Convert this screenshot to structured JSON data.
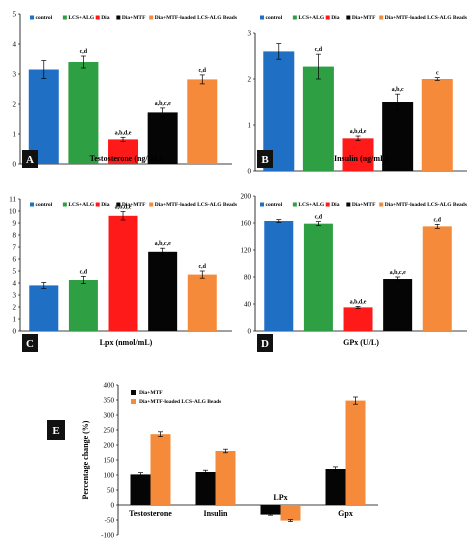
{
  "colors": {
    "control": "#1F6FC5",
    "lcs_alg": "#2EA043",
    "dia": "#FF1A1A",
    "dia_mtf": "#050505",
    "dia_mtf_beads": "#F58A3A",
    "axis": "#000000",
    "panel_letter_bg": "#111111"
  },
  "chart_data": [
    {
      "type": "bar",
      "panel_label": "A",
      "xlabel": "Testosterone (ng/mL)",
      "ylim": [
        0,
        5
      ],
      "yticks": [
        "0",
        "1",
        "2",
        "3",
        "4",
        "5"
      ],
      "series": [
        {
          "name": "control",
          "value": 3.15,
          "err": 0.3,
          "annot": ""
        },
        {
          "name": "LCS+ALG",
          "value": 3.4,
          "err": 0.2,
          "annot": "c,d"
        },
        {
          "name": "Dia",
          "value": 0.82,
          "err": 0.07,
          "annot": "a,b,d,e"
        },
        {
          "name": "Dia+MTF",
          "value": 1.72,
          "err": 0.15,
          "annot": "a,b,c,e"
        },
        {
          "name": "Dia+MTF-loaded LCS-ALG Beads",
          "value": 2.82,
          "err": 0.15,
          "annot": "c,d"
        }
      ]
    },
    {
      "type": "bar",
      "panel_label": "B",
      "xlabel": "Insulin (ng/mL)",
      "ylim": [
        0,
        3
      ],
      "yticks": [
        "0",
        "1",
        "2",
        "3"
      ],
      "series": [
        {
          "name": "control",
          "value": 2.6,
          "err": 0.17,
          "annot": ""
        },
        {
          "name": "LCS+ALG",
          "value": 2.27,
          "err": 0.27,
          "annot": "c,d"
        },
        {
          "name": "Dia",
          "value": 0.71,
          "err": 0.05,
          "annot": "a,b,d,e"
        },
        {
          "name": "Dia+MTF",
          "value": 1.5,
          "err": 0.17,
          "annot": "a,b,c"
        },
        {
          "name": "Dia+MTF-loaded LCS-ALG Beads",
          "value": 2.0,
          "err": 0.03,
          "annot": "c"
        }
      ]
    },
    {
      "type": "bar",
      "panel_label": "C",
      "xlabel": "Lpx (nmol/mL)",
      "ylim": [
        0,
        11
      ],
      "yticks": [
        "0",
        "1",
        "2",
        "3",
        "4",
        "5",
        "6",
        "7",
        "8",
        "9",
        "10",
        "11"
      ],
      "series": [
        {
          "name": "control",
          "value": 3.8,
          "err": 0.25,
          "annot": ""
        },
        {
          "name": "LCS+ALG",
          "value": 4.25,
          "err": 0.3,
          "annot": "c,d"
        },
        {
          "name": "Dia",
          "value": 9.6,
          "err": 0.35,
          "annot": "a,b,d,e"
        },
        {
          "name": "Dia+MTF",
          "value": 6.6,
          "err": 0.3,
          "annot": "a,b,c,e"
        },
        {
          "name": "Dia+MTF-loaded LCS-ALG Beads",
          "value": 4.7,
          "err": 0.3,
          "annot": "c,d"
        }
      ]
    },
    {
      "type": "bar",
      "panel_label": "D",
      "xlabel": "GPx (U/L)",
      "ylim": [
        0,
        200
      ],
      "yticks": [
        "0",
        "40",
        "80",
        "120",
        "160",
        "200"
      ],
      "series": [
        {
          "name": "control",
          "value": 163,
          "err": 2,
          "annot": ""
        },
        {
          "name": "LCS+ALG",
          "value": 159,
          "err": 3,
          "annot": "c,d"
        },
        {
          "name": "Dia",
          "value": 35,
          "err": 1.5,
          "annot": "a,b,d,e"
        },
        {
          "name": "Dia+MTF",
          "value": 77,
          "err": 3,
          "annot": "a,b,c,e"
        },
        {
          "name": "Dia+MTF-loaded LCS-ALG Beads",
          "value": 155,
          "err": 3,
          "annot": "c,d"
        }
      ]
    },
    {
      "type": "bar",
      "panel_label": "E",
      "ylabel": "Percentage change (%)",
      "ylim": [
        -100,
        400
      ],
      "yticks": [
        "-100",
        "-50",
        "0",
        "50",
        "100",
        "150",
        "200",
        "250",
        "300",
        "350",
        "400"
      ],
      "categories": [
        "Testosterone",
        "Insulin",
        "LPx",
        "Gpx"
      ],
      "series": [
        {
          "name": "Dia+MTF",
          "values": [
            102,
            110,
            -32,
            120
          ],
          "errs": [
            6,
            6,
            2,
            7
          ]
        },
        {
          "name": "Dia+MTF-loaded LCS-ALG Beads",
          "values": [
            236,
            180,
            -52,
            348
          ],
          "errs": [
            8,
            6,
            3,
            12
          ]
        }
      ]
    }
  ]
}
